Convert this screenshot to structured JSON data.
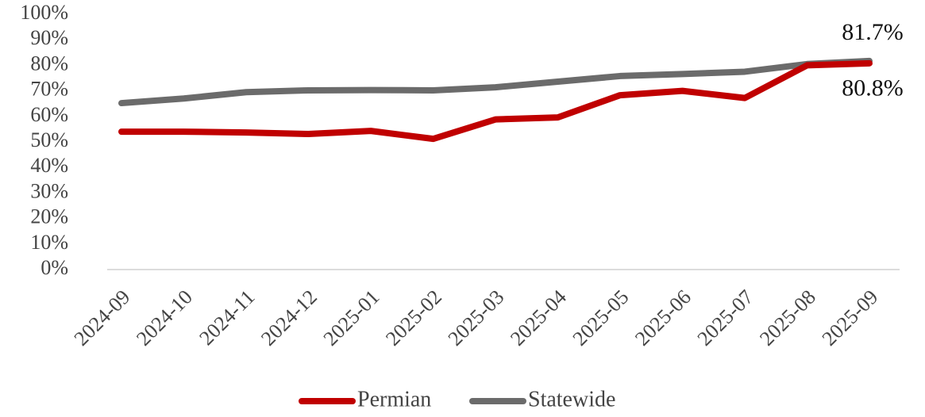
{
  "chart_data": {
    "type": "line",
    "categories": [
      "2024-09",
      "2024-10",
      "2024-11",
      "2024-12",
      "2025-01",
      "2025-02",
      "2025-03",
      "2025-04",
      "2025-05",
      "2025-06",
      "2025-07",
      "2025-08",
      "2025-09"
    ],
    "series": [
      {
        "name": "Permian",
        "color": "#c00000",
        "values": [
          54.0,
          54.0,
          53.7,
          53.1,
          54.3,
          51.2,
          58.8,
          59.6,
          68.3,
          70.0,
          67.2,
          80.0,
          80.8
        ],
        "value_labels": [
          null,
          null,
          null,
          null,
          null,
          null,
          null,
          null,
          null,
          null,
          null,
          null,
          "80.8%"
        ]
      },
      {
        "name": "Statewide",
        "color": "#6b6b6b",
        "values": [
          65.2,
          67.0,
          69.5,
          70.2,
          70.3,
          70.2,
          71.4,
          73.6,
          75.8,
          76.6,
          77.5,
          80.5,
          81.7
        ],
        "value_labels": [
          null,
          null,
          null,
          null,
          null,
          null,
          null,
          null,
          null,
          null,
          null,
          null,
          "81.7%"
        ]
      }
    ],
    "ylim": [
      0,
      100
    ],
    "yticks": [
      {
        "value": 0,
        "label": "0%"
      },
      {
        "value": 10,
        "label": "10%"
      },
      {
        "value": 20,
        "label": "20%"
      },
      {
        "value": 30,
        "label": "30%"
      },
      {
        "value": 40,
        "label": "40%"
      },
      {
        "value": 50,
        "label": "50%"
      },
      {
        "value": 60,
        "label": "60%"
      },
      {
        "value": 70,
        "label": "70%"
      },
      {
        "value": 80,
        "label": "80%"
      },
      {
        "value": 90,
        "label": "90%"
      },
      {
        "value": 100,
        "label": "100%"
      }
    ],
    "grid": false,
    "legend": "bottom"
  }
}
